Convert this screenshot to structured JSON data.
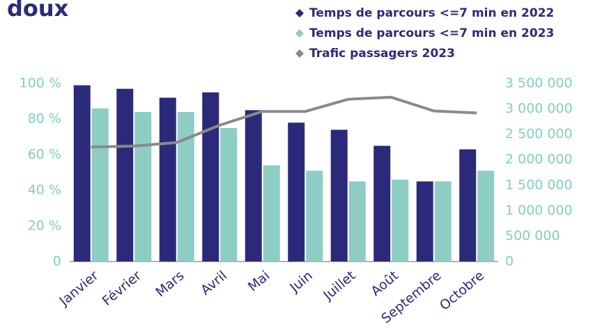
{
  "chart_data": {
    "type": "bar",
    "title": "doux",
    "categories": [
      "Janvier",
      "Février",
      "Mars",
      "Avril",
      "Mai",
      "Juin",
      "Juillet",
      "Août",
      "Septembre",
      "Octobre"
    ],
    "series": [
      {
        "name": "Temps de parcours <=7 min en 2022",
        "color": "#2b2a7a",
        "values": [
          99,
          97,
          92,
          95,
          85,
          78,
          74,
          65,
          45,
          63
        ]
      },
      {
        "name": "Temps de parcours <=7 min en 2023",
        "color": "#8ecdc4",
        "values": [
          86,
          84,
          84,
          75,
          54,
          51,
          45,
          46,
          45,
          51
        ]
      },
      {
        "name": "Trafic passagers 2023",
        "color": "#8a8a8a",
        "type": "line",
        "axis": "y2",
        "values": [
          2250000,
          2270000,
          2340000,
          2680000,
          2950000,
          2950000,
          3190000,
          3230000,
          2960000,
          2920000
        ]
      }
    ],
    "ylim": [
      0,
      100
    ],
    "yticks": [
      0,
      {
        "value": 20,
        "label": "20 %"
      },
      {
        "value": 40,
        "label": "40 %"
      },
      {
        "value": 60,
        "label": "60 %"
      },
      {
        "value": 80,
        "label": "80 %"
      },
      {
        "value": 100,
        "label": "100 %"
      }
    ],
    "y2lim": [
      0,
      3500000
    ],
    "y2ticks": [
      0,
      {
        "value": 500000,
        "label": "500 000"
      },
      {
        "value": 1000000,
        "label": "1 000 000"
      },
      {
        "value": 1500000,
        "label": "1 500 000"
      },
      {
        "value": 2000000,
        "label": "2 000 000"
      },
      {
        "value": 2500000,
        "label": "2 500 000"
      },
      {
        "value": 3000000,
        "label": "3 000 000"
      },
      {
        "value": 3500000,
        "label": "3 500 000"
      }
    ]
  }
}
